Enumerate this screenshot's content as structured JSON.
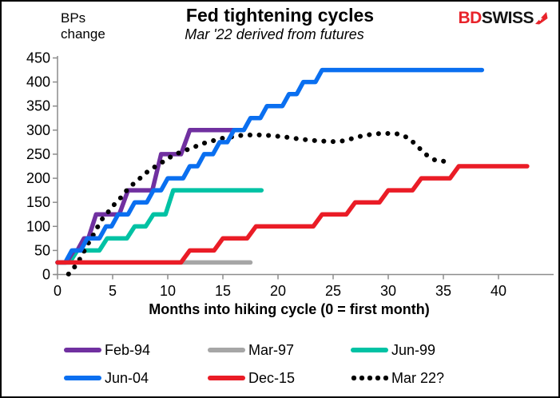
{
  "header": {
    "y_axis_unit": "BPs\nchange",
    "title": "Fed tightening cycles",
    "subtitle": "Mar '22 derived from futures",
    "logo": {
      "part1": "BD",
      "part2": "SWISS",
      "part1_color": "#e8232a",
      "part2_color": "#141414",
      "arrow_color": "#e8232a"
    }
  },
  "chart_data": {
    "type": "line",
    "title": "Fed tightening cycles",
    "subtitle": "Mar '22 derived from futures",
    "xlabel": "Months into hiking cycle (0 = first month)",
    "ylabel": "BPs change",
    "xlim": [
      0,
      45
    ],
    "ylim": [
      0,
      450
    ],
    "x_ticks": [
      0,
      5,
      10,
      15,
      20,
      25,
      30,
      35,
      40
    ],
    "y_ticks": [
      0,
      50,
      100,
      150,
      200,
      250,
      300,
      350,
      400,
      450
    ],
    "grid": false,
    "legend_position": "bottom",
    "axis_color": "#8c8c8c",
    "series": [
      {
        "name": "Feb-94",
        "color": "#7030a0",
        "style": "solid",
        "z": 3,
        "points": [
          [
            0,
            25
          ],
          [
            0.8,
            25
          ],
          [
            1.5,
            50
          ],
          [
            1.8,
            50
          ],
          [
            2.4,
            75
          ],
          [
            2.8,
            75
          ],
          [
            3.5,
            125
          ],
          [
            5.6,
            125
          ],
          [
            6.4,
            175
          ],
          [
            8.6,
            175
          ],
          [
            9.4,
            250
          ],
          [
            11.2,
            250
          ],
          [
            12,
            300
          ],
          [
            16.5,
            300
          ]
        ]
      },
      {
        "name": "Mar-97",
        "color": "#a6a6a6",
        "style": "solid",
        "z": 1,
        "points": [
          [
            0,
            25
          ],
          [
            17.5,
            25
          ]
        ]
      },
      {
        "name": "Jun-99",
        "color": "#00c2a4",
        "style": "solid",
        "z": 2,
        "points": [
          [
            0,
            25
          ],
          [
            1.1,
            25
          ],
          [
            1.8,
            50
          ],
          [
            3.8,
            50
          ],
          [
            4.5,
            75
          ],
          [
            6.3,
            75
          ],
          [
            7,
            100
          ],
          [
            8,
            100
          ],
          [
            8.7,
            125
          ],
          [
            9.8,
            125
          ],
          [
            10.5,
            175
          ],
          [
            18.5,
            175
          ]
        ]
      },
      {
        "name": "Jun-04",
        "color": "#0a6ff0",
        "style": "solid",
        "z": 5,
        "points": [
          [
            0,
            25
          ],
          [
            0.7,
            25
          ],
          [
            1.3,
            50
          ],
          [
            2.1,
            50
          ],
          [
            2.7,
            75
          ],
          [
            3.8,
            75
          ],
          [
            4.4,
            100
          ],
          [
            4.9,
            100
          ],
          [
            5.5,
            125
          ],
          [
            6.4,
            125
          ],
          [
            7,
            150
          ],
          [
            8.1,
            150
          ],
          [
            8.7,
            175
          ],
          [
            9.4,
            175
          ],
          [
            10,
            200
          ],
          [
            11.4,
            200
          ],
          [
            12,
            225
          ],
          [
            12.7,
            225
          ],
          [
            13.3,
            250
          ],
          [
            14.1,
            250
          ],
          [
            14.7,
            275
          ],
          [
            15.4,
            275
          ],
          [
            16,
            300
          ],
          [
            16.9,
            300
          ],
          [
            17.5,
            325
          ],
          [
            18.4,
            325
          ],
          [
            19,
            350
          ],
          [
            20.4,
            350
          ],
          [
            21,
            375
          ],
          [
            21.7,
            375
          ],
          [
            22.3,
            400
          ],
          [
            23.4,
            400
          ],
          [
            24,
            425
          ],
          [
            38.5,
            425
          ]
        ]
      },
      {
        "name": "Dec-15",
        "color": "#ea1c26",
        "style": "solid",
        "z": 6,
        "points": [
          [
            0,
            25
          ],
          [
            11.2,
            25
          ],
          [
            12,
            50
          ],
          [
            14.2,
            50
          ],
          [
            15,
            75
          ],
          [
            17.2,
            75
          ],
          [
            18,
            100
          ],
          [
            23.2,
            100
          ],
          [
            24,
            125
          ],
          [
            26.2,
            125
          ],
          [
            27,
            150
          ],
          [
            29.2,
            150
          ],
          [
            30,
            175
          ],
          [
            32.2,
            175
          ],
          [
            33,
            200
          ],
          [
            35.6,
            200
          ],
          [
            36.4,
            225
          ],
          [
            42.6,
            225
          ]
        ]
      },
      {
        "name": "Mar 22?",
        "color": "#000000",
        "style": "dotted",
        "z": 4,
        "points": [
          [
            1,
            1
          ],
          [
            1.7,
            20
          ],
          [
            2.2,
            39
          ],
          [
            2.6,
            57
          ],
          [
            3,
            73
          ],
          [
            3.4,
            88
          ],
          [
            3.7,
            102
          ],
          [
            4.1,
            117
          ],
          [
            4.5,
            127
          ],
          [
            4.9,
            139
          ],
          [
            5.4,
            152
          ],
          [
            5.8,
            161
          ],
          [
            6.2,
            173
          ],
          [
            6.7,
            184
          ],
          [
            7.1,
            194
          ],
          [
            7.6,
            202
          ],
          [
            8,
            211
          ],
          [
            8.5,
            218
          ],
          [
            8.9,
            225
          ],
          [
            9.4,
            232
          ],
          [
            9.9,
            239
          ],
          [
            10.3,
            245
          ],
          [
            10.8,
            251
          ],
          [
            11.2,
            254
          ],
          [
            11.6,
            258
          ],
          [
            12.4,
            265
          ],
          [
            13.3,
            273
          ],
          [
            14.1,
            278
          ],
          [
            14.9,
            283
          ],
          [
            15.8,
            286
          ],
          [
            16.6,
            289
          ],
          [
            17.5,
            290
          ],
          [
            18.3,
            290
          ],
          [
            19.2,
            289
          ],
          [
            20.1,
            287
          ],
          [
            20.9,
            285
          ],
          [
            21.8,
            282
          ],
          [
            22.6,
            280
          ],
          [
            23.5,
            278
          ],
          [
            24.3,
            277
          ],
          [
            25.2,
            276
          ],
          [
            26,
            278
          ],
          [
            26.8,
            283
          ],
          [
            27.6,
            288
          ],
          [
            28.4,
            291
          ],
          [
            29.3,
            293
          ],
          [
            30.1,
            293
          ],
          [
            31,
            292
          ],
          [
            31.9,
            283
          ],
          [
            32.7,
            265
          ],
          [
            33.5,
            248
          ],
          [
            34.3,
            237
          ],
          [
            35.2,
            235
          ]
        ]
      }
    ]
  }
}
